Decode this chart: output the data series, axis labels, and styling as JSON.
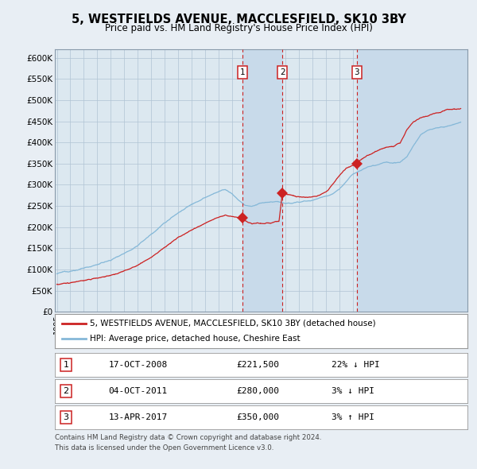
{
  "title": "5, WESTFIELDS AVENUE, MACCLESFIELD, SK10 3BY",
  "subtitle": "Price paid vs. HM Land Registry's House Price Index (HPI)",
  "transactions": [
    {
      "num": 1,
      "date": "17-OCT-2008",
      "price": 221500,
      "pct": "22%",
      "dir": "↓",
      "year": 2008.79
    },
    {
      "num": 2,
      "date": "04-OCT-2011",
      "price": 280000,
      "pct": "3%",
      "dir": "↓",
      "year": 2011.75
    },
    {
      "num": 3,
      "date": "13-APR-2017",
      "price": 350000,
      "pct": "3%",
      "dir": "↑",
      "year": 2017.28
    }
  ],
  "legend_property": "5, WESTFIELDS AVENUE, MACCLESFIELD, SK10 3BY (detached house)",
  "legend_hpi": "HPI: Average price, detached house, Cheshire East",
  "footnote1": "Contains HM Land Registry data © Crown copyright and database right 2024.",
  "footnote2": "This data is licensed under the Open Government Licence v3.0.",
  "hpi_color": "#85b8d8",
  "price_color": "#cc2222",
  "background_color": "#e8eef4",
  "plot_bg": "#dce8f0",
  "shading_color": "#c8daea",
  "grid_color": "#b0c4d4",
  "ylim": [
    0,
    620000
  ],
  "ytick_vals": [
    0,
    50000,
    100000,
    150000,
    200000,
    250000,
    300000,
    350000,
    400000,
    450000,
    500000,
    550000,
    600000
  ],
  "ytick_labels": [
    "£0",
    "£50K",
    "£100K",
    "£150K",
    "£200K",
    "£250K",
    "£300K",
    "£350K",
    "£400K",
    "£450K",
    "£500K",
    "£550K",
    "£600K"
  ],
  "xlim_start": 1995.0,
  "xlim_end": 2025.5,
  "hpi_keypoints_x": [
    1995,
    1996,
    1997,
    1998,
    1999,
    2000,
    2001,
    2002,
    2003,
    2004,
    2005,
    2006,
    2007,
    2007.5,
    2008,
    2008.5,
    2009,
    2009.5,
    2010,
    2010.5,
    2011,
    2011.5,
    2012,
    2012.5,
    2013,
    2013.5,
    2014,
    2014.5,
    2015,
    2015.5,
    2016,
    2016.5,
    2017,
    2017.5,
    2018,
    2018.5,
    2019,
    2019.5,
    2020,
    2020.5,
    2021,
    2021.5,
    2022,
    2022.5,
    2023,
    2023.5,
    2024,
    2024.5,
    2025
  ],
  "hpi_keypoints_y": [
    90000,
    96000,
    103000,
    112000,
    122000,
    140000,
    160000,
    185000,
    210000,
    235000,
    255000,
    270000,
    285000,
    290000,
    280000,
    265000,
    252000,
    250000,
    255000,
    258000,
    258000,
    258000,
    255000,
    255000,
    257000,
    260000,
    263000,
    268000,
    272000,
    280000,
    292000,
    308000,
    325000,
    335000,
    345000,
    350000,
    355000,
    358000,
    352000,
    355000,
    368000,
    395000,
    420000,
    430000,
    435000,
    438000,
    440000,
    445000,
    448000
  ],
  "price_keypoints_x": [
    1995,
    1996,
    1997,
    1998,
    1999,
    2000,
    2001,
    2002,
    2003,
    2004,
    2005,
    2006,
    2007,
    2007.5,
    2008,
    2008.5,
    2008.79,
    2009,
    2009.5,
    2010,
    2010.5,
    2011,
    2011.5,
    2011.75,
    2012,
    2012.5,
    2013,
    2013.5,
    2014,
    2014.5,
    2015,
    2015.5,
    2016,
    2016.5,
    2017,
    2017.28,
    2017.5,
    2018,
    2018.5,
    2019,
    2019.5,
    2020,
    2020.5,
    2021,
    2021.5,
    2022,
    2022.5,
    2023,
    2023.5,
    2024,
    2024.5,
    2025
  ],
  "price_keypoints_y": [
    65000,
    68000,
    72000,
    78000,
    85000,
    95000,
    108000,
    125000,
    148000,
    172000,
    192000,
    210000,
    225000,
    230000,
    225000,
    222000,
    221500,
    215000,
    208000,
    210000,
    212000,
    213000,
    215000,
    280000,
    278000,
    275000,
    272000,
    270000,
    272000,
    278000,
    288000,
    305000,
    325000,
    342000,
    348000,
    350000,
    358000,
    368000,
    375000,
    385000,
    390000,
    390000,
    400000,
    430000,
    450000,
    460000,
    462000,
    468000,
    470000,
    475000,
    478000,
    480000
  ]
}
